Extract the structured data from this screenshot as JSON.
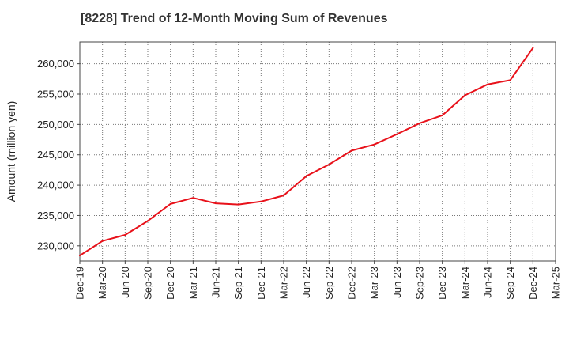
{
  "chart_data": {
    "type": "line",
    "title": "[8228]  Trend of 12-Month Moving Sum of Revenues",
    "xlabel": "",
    "ylabel": "Amount (million yen)",
    "x_tick_labels": [
      "Dec-19",
      "Mar-20",
      "Jun-20",
      "Sep-20",
      "Dec-20",
      "Mar-21",
      "Jun-21",
      "Sep-21",
      "Dec-21",
      "Mar-22",
      "Jun-22",
      "Sep-22",
      "Dec-22",
      "Mar-23",
      "Jun-23",
      "Sep-23",
      "Dec-23",
      "Mar-24",
      "Jun-24",
      "Sep-24",
      "Dec-24",
      "Mar-25"
    ],
    "y_tick_values": [
      230000,
      235000,
      240000,
      245000,
      250000,
      255000,
      260000
    ],
    "y_tick_labels": [
      "230,000",
      "235,000",
      "240,000",
      "245,000",
      "250,000",
      "255,000",
      "260,000"
    ],
    "ylim": [
      227500,
      263600
    ],
    "grid": true,
    "series": [
      {
        "color": "#e8111a",
        "x": [
          "Dec-19",
          "Mar-20",
          "Jun-20",
          "Sep-20",
          "Dec-20",
          "Mar-21",
          "Jun-21",
          "Sep-21",
          "Dec-21",
          "Mar-22",
          "Jun-22",
          "Sep-22",
          "Dec-22",
          "Mar-23",
          "Jun-23",
          "Sep-23",
          "Dec-23",
          "Mar-24",
          "Jun-24",
          "Sep-24",
          "Dec-24"
        ],
        "values": [
          228400,
          230800,
          231800,
          234100,
          236900,
          237900,
          237000,
          236800,
          237300,
          238300,
          241500,
          243400,
          245700,
          246700,
          248400,
          250200,
          251500,
          254800,
          256600,
          257300,
          262600
        ]
      }
    ]
  }
}
